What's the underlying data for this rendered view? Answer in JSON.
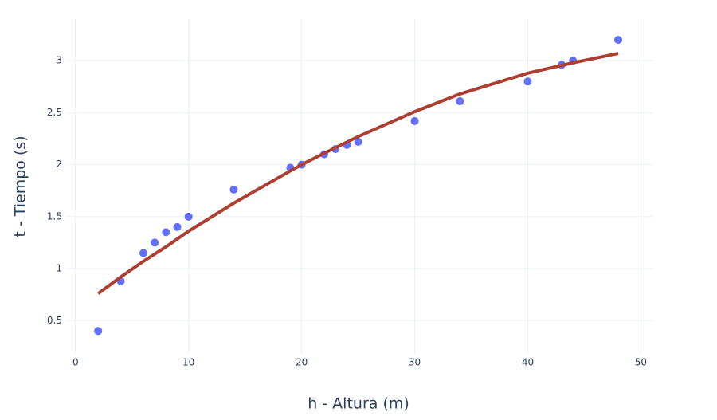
{
  "chart_data": {
    "type": "scatter",
    "x_label": "h - Altura (m)",
    "y_label": "t - Tiempo (s)",
    "xlim": [
      -0.9,
      51.1
    ],
    "ylim": [
      0.18,
      3.4
    ],
    "xticks": [
      0,
      10,
      20,
      30,
      40,
      50
    ],
    "yticks": [
      0.5,
      1,
      1.5,
      2,
      2.5,
      3
    ],
    "grid": true,
    "series": [
      {
        "mode": "markers",
        "color": "#636efa",
        "x": [
          2,
          4,
          6,
          7,
          8,
          9,
          10,
          14,
          19,
          20,
          22,
          23,
          24,
          25,
          30,
          34,
          40,
          43,
          44,
          48
        ],
        "values": [
          0.4,
          0.88,
          1.15,
          1.25,
          1.35,
          1.4,
          1.5,
          1.76,
          1.97,
          2.0,
          2.1,
          2.15,
          2.19,
          2.22,
          2.42,
          2.61,
          2.8,
          2.96,
          3.0,
          3.2
        ]
      },
      {
        "mode": "lines",
        "color": "#ad3f32",
        "x": [
          2,
          4,
          6,
          8,
          10,
          14,
          19,
          20,
          22,
          25,
          30,
          34,
          40,
          44,
          48
        ],
        "values": [
          0.76,
          0.92,
          1.07,
          1.21,
          1.36,
          1.63,
          1.94,
          2.0,
          2.11,
          2.27,
          2.51,
          2.68,
          2.88,
          2.98,
          3.07
        ]
      }
    ]
  }
}
